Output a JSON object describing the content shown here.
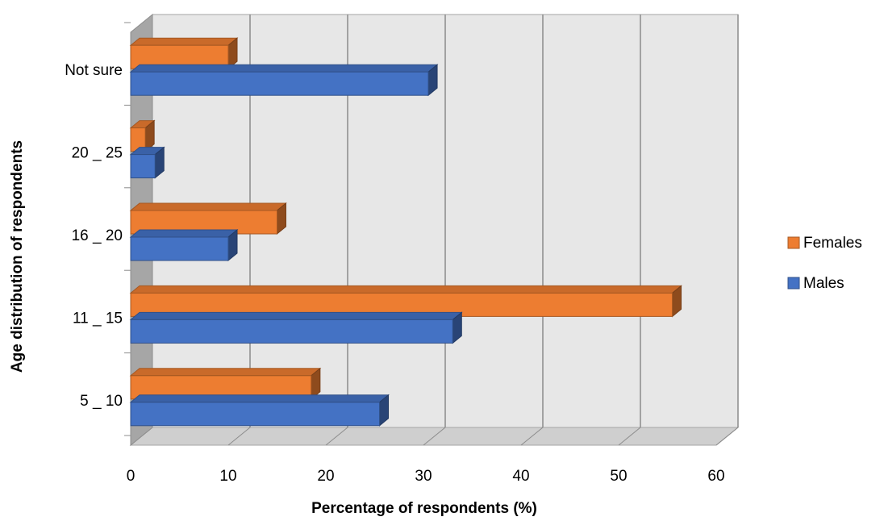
{
  "chart_data": {
    "type": "bar",
    "orientation": "horizontal",
    "style": "3d",
    "title": "",
    "xlabel": "Percentage of respondents (%)",
    "ylabel": "Age distribution of respondents",
    "categories": [
      "5 _ 10",
      "11 _ 15",
      "16 _ 20",
      "20 _ 25",
      "Not sure"
    ],
    "xlim": [
      0,
      60
    ],
    "xticks": [
      0,
      10,
      20,
      30,
      40,
      50,
      60
    ],
    "grid": true,
    "legend_position": "right",
    "series": [
      {
        "name": "Males",
        "color": "#4472C4",
        "values": [
          25.5,
          33,
          10,
          2.5,
          30.5
        ]
      },
      {
        "name": "Females",
        "color": "#ED7D31",
        "values": [
          18.5,
          55.5,
          15,
          1.5,
          10
        ]
      }
    ],
    "legend_order": [
      "Females",
      "Males"
    ]
  }
}
